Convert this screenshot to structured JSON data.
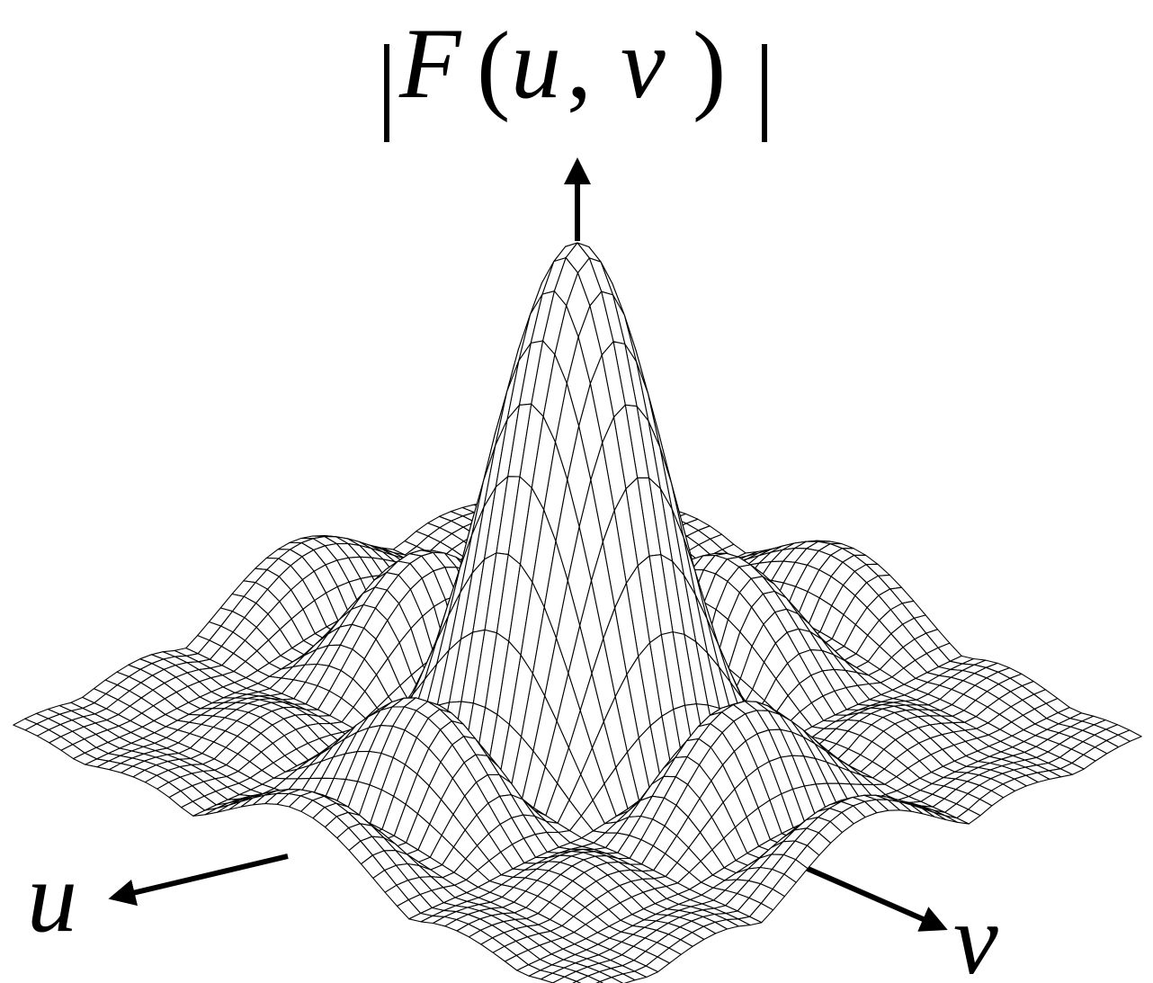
{
  "figure": {
    "surface_function": "|sinc(u) · sinc(v)|",
    "z_label": {
      "bar_left": "|",
      "func": "F",
      "paren_open": "(",
      "u": "u",
      "comma": ",",
      "v": "v",
      "paren_close": ")",
      "bar_right": "|"
    },
    "u_axis_label": "u",
    "v_axis_label": "v",
    "colors": {
      "background": "#ffffff",
      "surface_fill": "#ffffff",
      "mesh_line": "#000000",
      "axis": "#000000"
    }
  }
}
